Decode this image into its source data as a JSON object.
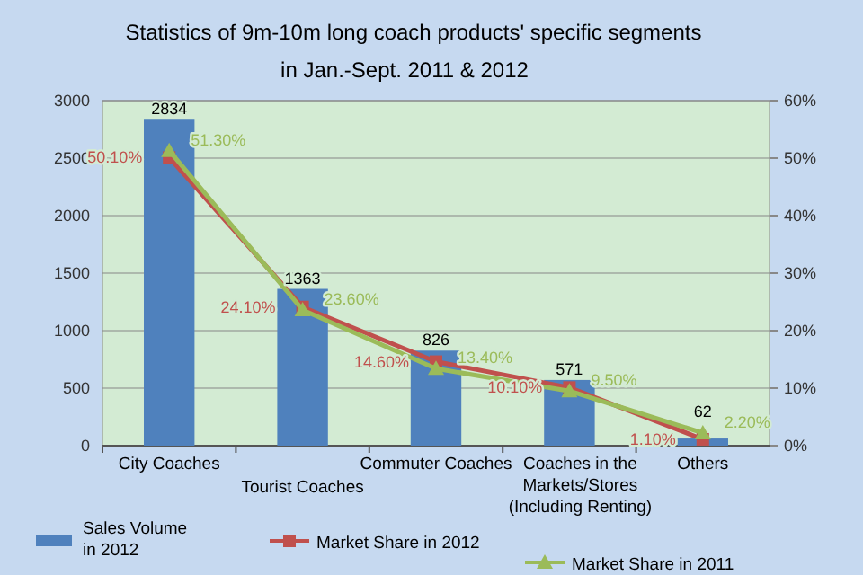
{
  "chart_data": {
    "type": "bar",
    "title": "Statistics of 9m-10m long coach products' specific segments",
    "subtitle": "in Jan.-Sept. 2011 & 2012",
    "categories": [
      "City Coaches",
      "Tourist Coaches",
      "Commuter Coaches",
      "Coaches in the Markets/Stores (Including Renting)",
      "Others"
    ],
    "series": [
      {
        "name": "Sales Volume in 2012",
        "color": "#4f81bd",
        "values": [
          2834,
          1363,
          826,
          571,
          62
        ],
        "value_labels": [
          "2834",
          "1363",
          "826",
          "571",
          "62"
        ]
      },
      {
        "name": "Market Share in 2012",
        "type": "line",
        "axis": "y2",
        "color": "#c0504d",
        "marker": "square",
        "values": [
          50.1,
          24.1,
          14.6,
          10.1,
          1.1
        ],
        "value_labels": [
          "50.10%",
          "24.10%",
          "14.60%",
          "10.10%",
          "1.10%"
        ]
      },
      {
        "name": "Market Share in 2011",
        "type": "line",
        "axis": "y2",
        "color": "#9bbb59",
        "marker": "triangle",
        "values": [
          51.3,
          23.6,
          13.4,
          9.5,
          2.2
        ],
        "value_labels": [
          "51.30%",
          "23.60%",
          "13.40%",
          "9.50%",
          "2.20%"
        ]
      }
    ],
    "ylim": [
      0,
      3000
    ],
    "yticks": [
      0,
      500,
      1000,
      1500,
      2000,
      2500,
      3000
    ],
    "y2lim": [
      0,
      60
    ],
    "y2ticks": [
      {
        "value": 0,
        "label": "0%"
      },
      {
        "value": 10,
        "label": "10%"
      },
      {
        "value": 20,
        "label": "20%"
      },
      {
        "value": 30,
        "label": "30%"
      },
      {
        "value": 40,
        "label": "40%"
      },
      {
        "value": 50,
        "label": "50%"
      },
      {
        "value": 60,
        "label": "60%"
      }
    ],
    "grid": "y",
    "legend": "bottom"
  }
}
